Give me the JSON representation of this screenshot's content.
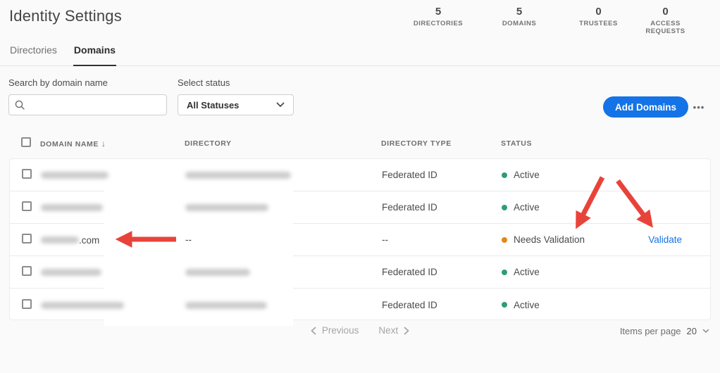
{
  "page": {
    "title": "Identity Settings"
  },
  "stats": [
    {
      "value": "5",
      "label": "DIRECTORIES"
    },
    {
      "value": "5",
      "label": "DOMAINS"
    },
    {
      "value": "0",
      "label": "TRUSTEES"
    },
    {
      "value": "0",
      "label": "ACCESS REQUESTS"
    }
  ],
  "tabs": [
    {
      "label": "Directories",
      "active": false
    },
    {
      "label": "Domains",
      "active": true
    }
  ],
  "filters": {
    "search_label": "Search by domain name",
    "search_value": "",
    "status_label": "Select status",
    "status_value": "All Statuses",
    "add_domains_label": "Add Domains",
    "more_icon": "•••"
  },
  "table": {
    "sort_icon": "↓",
    "columns": [
      "DOMAIN NAME",
      "DIRECTORY",
      "DIRECTORY TYPE",
      "STATUS"
    ],
    "rows": [
      {
        "domain_redacted": true,
        "domain_blur_width": 96,
        "directory_redacted": true,
        "directory_blur_width": 150,
        "directory_type": "Federated ID",
        "status": "Active"
      },
      {
        "domain_redacted": true,
        "domain_blur_width": 88,
        "directory_redacted": true,
        "directory_blur_width": 118,
        "directory_type": "Federated ID",
        "status": "Active"
      },
      {
        "domain_redacted": true,
        "domain_blur_width": 54,
        "domain_suffix": ".com",
        "directory": "--",
        "directory_type": "--",
        "status": "Needs Validation",
        "action": "Validate"
      },
      {
        "domain_redacted": true,
        "domain_blur_width": 86,
        "directory_redacted": true,
        "directory_blur_width": 92,
        "directory_type": "Federated ID",
        "status": "Active"
      },
      {
        "domain_redacted": true,
        "domain_blur_width": 118,
        "directory_redacted": true,
        "directory_blur_width": 116,
        "directory_type": "Federated ID",
        "status": "Active"
      }
    ]
  },
  "status_colors": {
    "Active": "#2d9d78",
    "Needs Validation": "#e68619"
  },
  "colors": {
    "accent_blue": "#1473e6",
    "link_blue": "#1473e6",
    "annotation_red": "#e8433b"
  },
  "pagination": {
    "previous": "Previous",
    "next": "Next",
    "items_per_page_label": "Items per page",
    "items_per_page_value": "20"
  },
  "annotations": {
    "arrows": [
      {
        "points_at": "domain-name-row-3",
        "direction": "left"
      },
      {
        "points_at": "needs-validation-status",
        "direction": "down-left"
      },
      {
        "points_at": "validate-link",
        "direction": "down-right"
      }
    ]
  }
}
